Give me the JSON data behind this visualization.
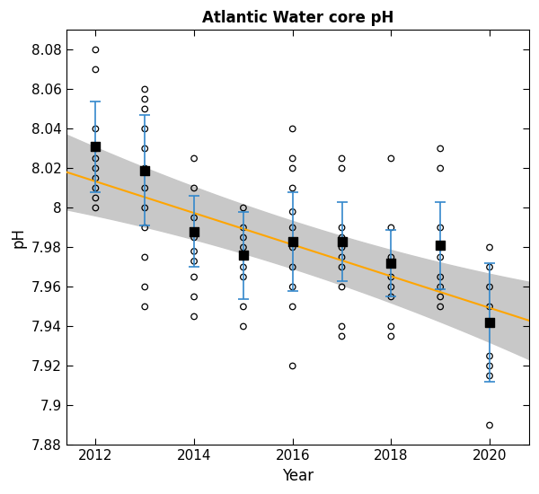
{
  "title": "Atlantic Water core pH",
  "xlabel": "Year",
  "ylabel": "pH",
  "ylim": [
    7.88,
    8.09
  ],
  "xlim": [
    2011.4,
    2020.8
  ],
  "yticks": [
    7.88,
    7.9,
    7.92,
    7.94,
    7.96,
    7.98,
    8.0,
    8.02,
    8.04,
    8.06,
    8.08
  ],
  "ytick_labels": [
    "7.88",
    "7.9",
    "7.92",
    "7.94",
    "7.96",
    "7.98",
    "8",
    "8.02",
    "8.04",
    "8.06",
    "8.08"
  ],
  "xticks": [
    2012,
    2014,
    2016,
    2018,
    2020
  ],
  "annual_means": [
    8.031,
    8.019,
    7.988,
    7.976,
    7.983,
    7.983,
    7.972,
    7.981,
    7.942
  ],
  "annual_std": [
    0.023,
    0.028,
    0.018,
    0.022,
    0.025,
    0.02,
    0.017,
    0.022,
    0.03
  ],
  "annual_years": [
    2012,
    2013,
    2014,
    2015,
    2016,
    2017,
    2018,
    2019,
    2020
  ],
  "obs_data": {
    "2012": [
      8.08,
      8.07,
      8.04,
      8.03,
      8.025,
      8.02,
      8.015,
      8.01,
      8.005,
      8.0
    ],
    "2013": [
      8.06,
      8.055,
      8.05,
      8.04,
      8.03,
      8.02,
      8.01,
      8.0,
      7.99,
      7.975,
      7.96,
      7.95
    ],
    "2014": [
      8.025,
      8.01,
      7.995,
      7.985,
      7.978,
      7.973,
      7.965,
      7.955,
      7.945
    ],
    "2015": [
      8.0,
      7.99,
      7.985,
      7.98,
      7.975,
      7.97,
      7.965,
      7.95,
      7.94
    ],
    "2016": [
      8.04,
      8.025,
      8.02,
      8.01,
      7.998,
      7.99,
      7.98,
      7.97,
      7.96,
      7.95,
      7.92
    ],
    "2017": [
      8.025,
      8.02,
      7.99,
      7.985,
      7.98,
      7.975,
      7.97,
      7.96,
      7.94,
      7.935
    ],
    "2018": [
      8.025,
      7.99,
      7.975,
      7.965,
      7.96,
      7.955,
      7.94,
      7.935
    ],
    "2019": [
      8.03,
      8.02,
      7.99,
      7.98,
      7.975,
      7.965,
      7.96,
      7.955,
      7.95
    ],
    "2020": [
      7.98,
      7.97,
      7.96,
      7.95,
      7.925,
      7.92,
      7.915,
      7.89
    ]
  },
  "regression_gradient": -0.008,
  "regression_intercept_at_2016": 7.9814,
  "colors": {
    "obs_circle": "#000000",
    "annual_mean": "#000000",
    "errorbar": "#3388cc",
    "regression": "#FFA500",
    "confidence": "#c8c8c8",
    "background": "#ffffff"
  }
}
